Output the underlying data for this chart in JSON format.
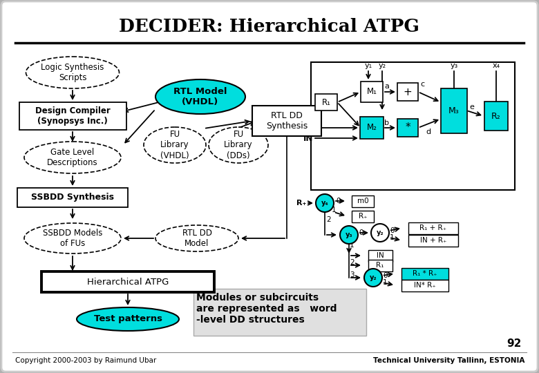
{
  "title": "DECIDER: Hierarchical ATPG",
  "cyan_color": "#00dede",
  "footer_left": "Copyright 2000-2003 by Raimund Ubar",
  "footer_right": "Technical University Tallinn, ESTONIA",
  "page_num": "92",
  "annotation": "Modules or subcircuits\nare represented as   word\n-level DD structures"
}
